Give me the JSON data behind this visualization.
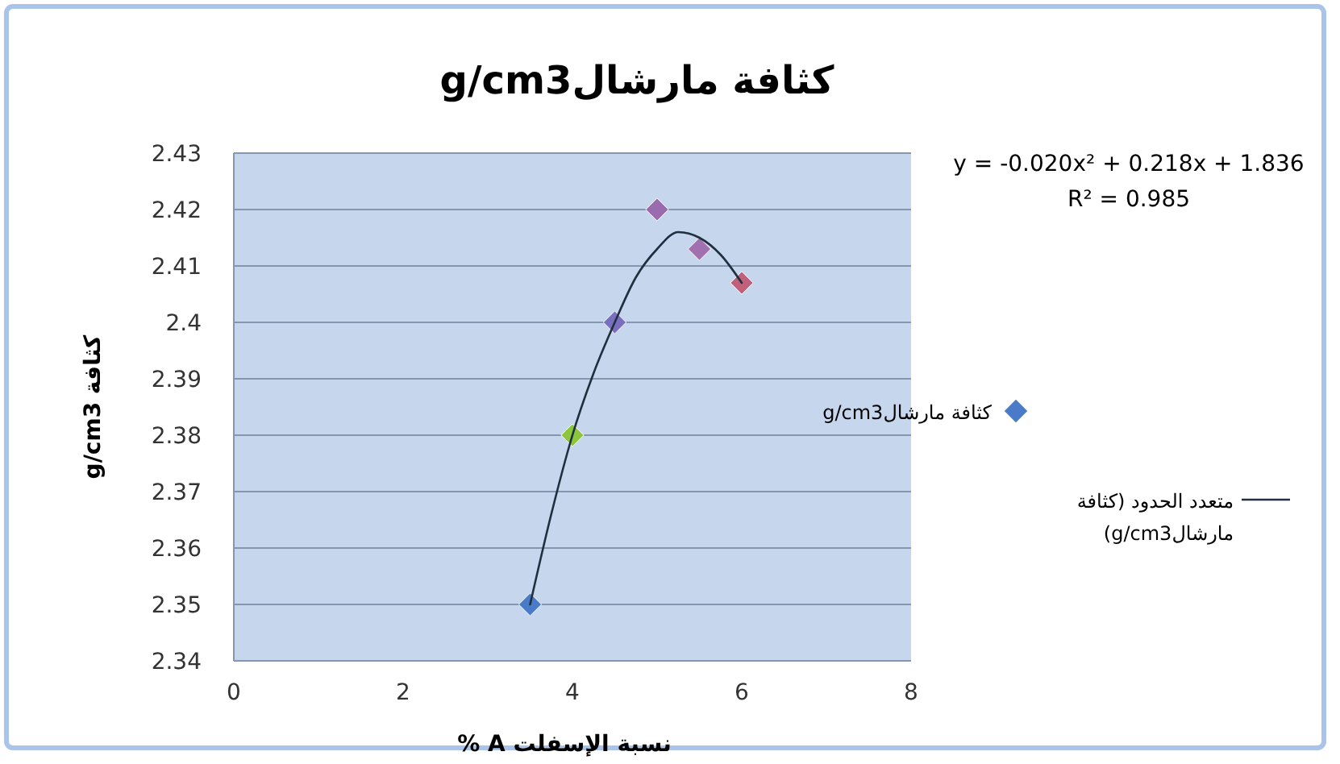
{
  "chart_data": {
    "type": "scatter",
    "title": "كثافة مارشالg/cm3",
    "xlabel": "نسبة الإسفلت A %",
    "ylabel": "كثافة g/cm3",
    "xlim": [
      0,
      8
    ],
    "xticks": [
      0,
      2,
      4,
      6,
      8
    ],
    "ylim": [
      2.34,
      2.43
    ],
    "yticks": [
      2.34,
      2.35,
      2.36,
      2.37,
      2.38,
      2.39,
      {
        "value": 2.4,
        "label": "2.4"
      },
      2.41,
      2.42,
      2.43
    ],
    "grid": "y",
    "legend": "right",
    "marker": "diamond",
    "annotations": [
      "y = -0.020x² + 0.218x + 1.836",
      "R² = 0.985"
    ],
    "series": [
      {
        "name": "كثافة مارشالg/cm3",
        "x": [
          3.5,
          4,
          4.5,
          5,
          5.5,
          6
        ],
        "values": [
          2.35,
          2.38,
          2.4,
          2.42,
          2.413,
          2.407
        ],
        "colors": [
          "#4a7bc8",
          "#8cc63f",
          "#7a6fbf",
          "#9b6bb0",
          "#a070b0",
          "#c0607a"
        ]
      },
      {
        "name": "متعدد الحدود (كثافة مارشالg/cm3)",
        "type": "line",
        "marker": "none",
        "color": "#1f2f3f",
        "line_style": "solid",
        "x": [
          3.5,
          3.75,
          4,
          4.25,
          4.5,
          4.75,
          5,
          5.25,
          5.5,
          5.75,
          6
        ],
        "values": [
          2.35,
          2.366,
          2.38,
          2.391,
          2.4,
          2.408,
          2.413,
          2.416,
          2.415,
          2.412,
          2.407
        ]
      }
    ]
  }
}
